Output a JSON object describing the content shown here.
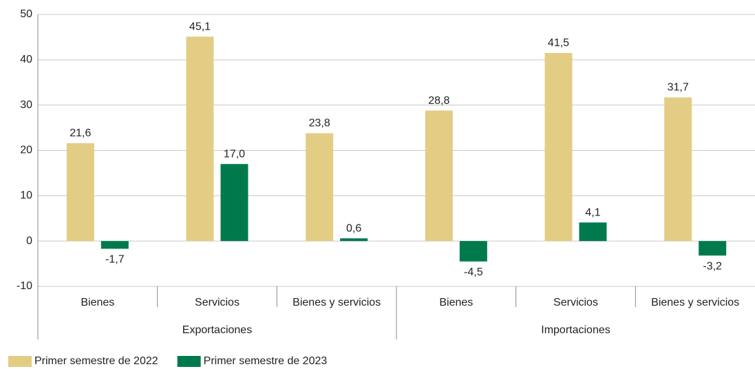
{
  "chart_data": {
    "type": "bar",
    "categories": [
      "Bienes",
      "Servicios",
      "Bienes y servicios",
      "Bienes",
      "Servicios",
      "Bienes y servicios"
    ],
    "groups": [
      "Exportaciones",
      "Importaciones"
    ],
    "series": [
      {
        "name": "Primer semestre de 2022",
        "color": "#e3cd85",
        "values": [
          21.6,
          45.1,
          23.8,
          28.8,
          41.5,
          31.7
        ],
        "value_labels": [
          "21,6",
          "45,1",
          "23,8",
          "28,8",
          "41,5",
          "31,7"
        ]
      },
      {
        "name": "Primer semestre de 2023",
        "color": "#007a4d",
        "values": [
          -1.7,
          17.0,
          0.6,
          -4.5,
          4.1,
          -3.2
        ],
        "value_labels": [
          "-1,7",
          "17,0",
          "0,6",
          "-4,5",
          "4,1",
          "-3,2"
        ]
      }
    ],
    "ylim": [
      -10,
      50
    ],
    "yticks": [
      -10,
      0,
      10,
      20,
      30,
      40,
      50
    ],
    "grid": true,
    "legend": "bottom-left"
  }
}
